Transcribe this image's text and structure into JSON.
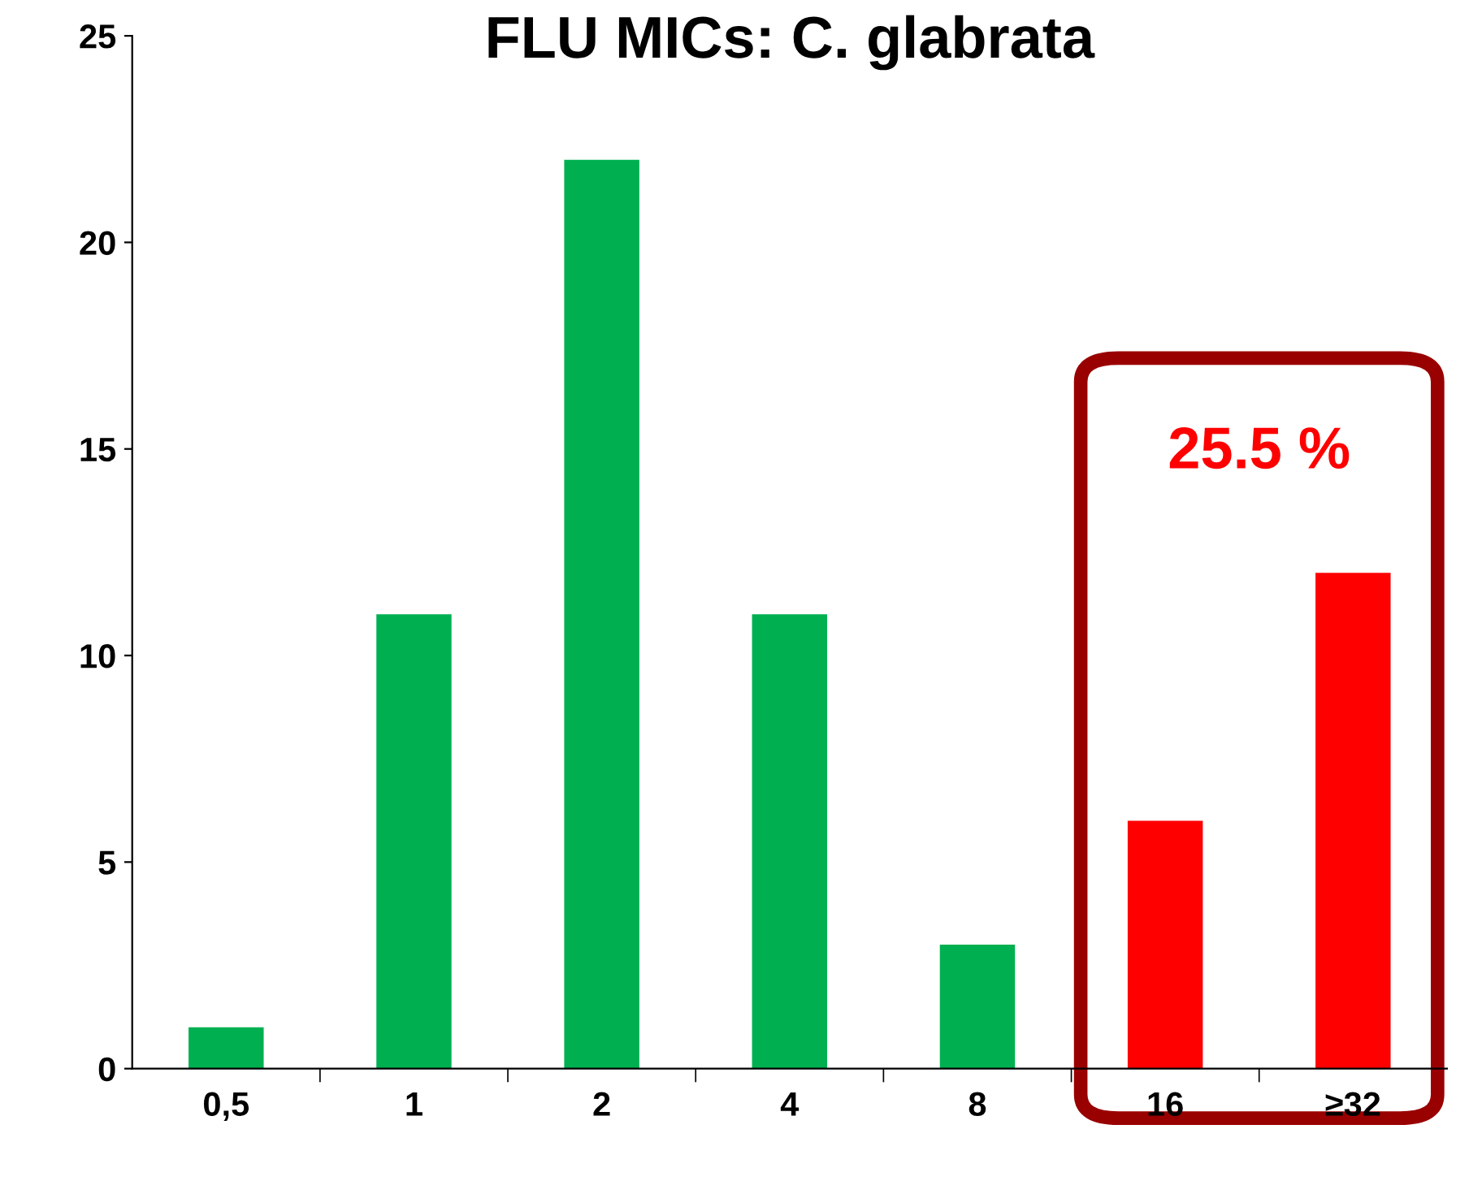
{
  "chart_data": {
    "type": "bar",
    "title": "FLU MICs: C. glabrata",
    "categories": [
      "0,5",
      "1",
      "2",
      "4",
      "8",
      "16",
      "≥32"
    ],
    "values": [
      1,
      11,
      22,
      11,
      3,
      6,
      12
    ],
    "colors": [
      "#00b050",
      "#00b050",
      "#00b050",
      "#00b050",
      "#00b050",
      "#ff0000",
      "#ff0000"
    ],
    "ylim": [
      0,
      25
    ],
    "yticks": [
      0,
      5,
      10,
      15,
      20,
      25
    ],
    "grid": false,
    "legend": false,
    "annotations": [
      "25.5 %"
    ]
  }
}
